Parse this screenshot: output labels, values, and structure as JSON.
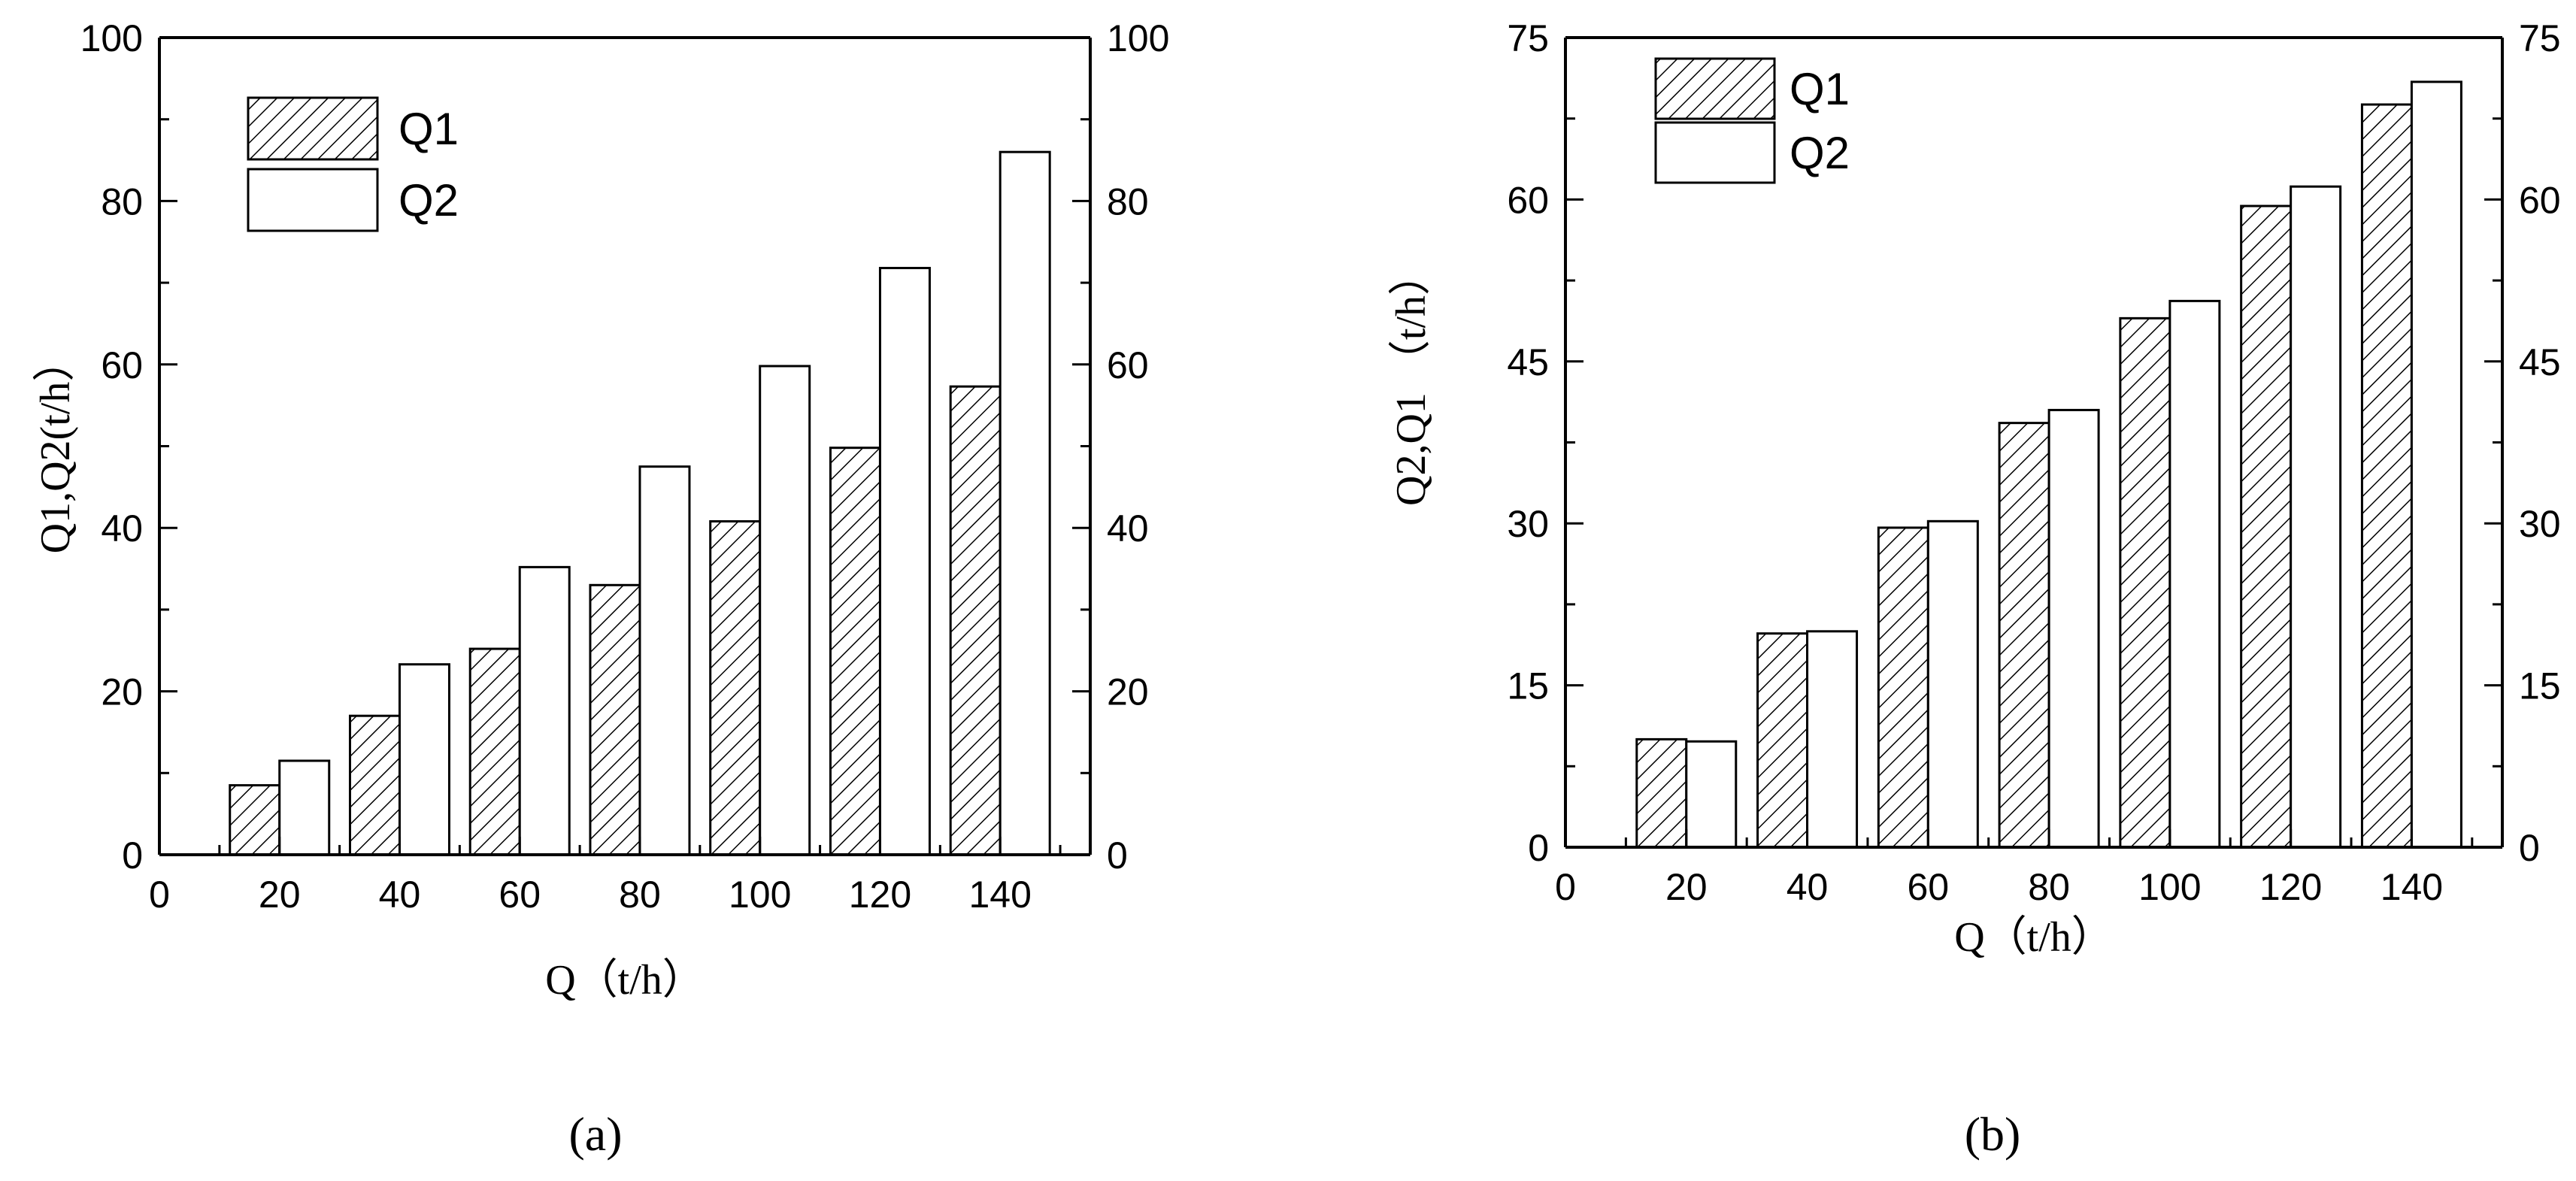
{
  "chart_data": [
    {
      "type": "bar",
      "panel_label": "(a)",
      "xlabel": "Q（t/h）",
      "ylabel": "Q1,Q2(t/h）",
      "xlim": [
        0,
        155
      ],
      "xticks": [
        "0",
        "20",
        "40",
        "60",
        "80",
        "100",
        "120",
        "140"
      ],
      "ylim": [
        0,
        100
      ],
      "yticks": [
        "0",
        "20",
        "40",
        "60",
        "80",
        "100"
      ],
      "right_axis_ticks": [
        "0",
        "20",
        "40",
        "60",
        "80",
        "100"
      ],
      "legend_position": "top-left",
      "x": [
        20,
        40,
        60,
        80,
        100,
        120,
        140
      ],
      "series": [
        {
          "name": "Q1",
          "pattern": "hatched",
          "values": [
            8.5,
            17,
            25.2,
            33,
            40.8,
            49.8,
            57.3
          ]
        },
        {
          "name": "Q2",
          "pattern": "empty",
          "values": [
            11.5,
            23.3,
            35.2,
            47.5,
            59.8,
            71.8,
            86
          ]
        }
      ]
    },
    {
      "type": "bar",
      "panel_label": "(b)",
      "xlabel": "Q（t/h）",
      "ylabel": "Q2,Q1 （t/h）",
      "xlim": [
        0,
        155
      ],
      "xticks": [
        "0",
        "20",
        "40",
        "60",
        "80",
        "100",
        "120",
        "140"
      ],
      "ylim": [
        0,
        75
      ],
      "yticks": [
        "0",
        "15",
        "30",
        "45",
        "60",
        "75"
      ],
      "right_axis_ticks": [
        "0",
        "15",
        "30",
        "45",
        "60",
        "75"
      ],
      "legend_position": "top-left",
      "x": [
        20,
        40,
        60,
        80,
        100,
        120,
        140
      ],
      "series": [
        {
          "name": "Q1",
          "pattern": "hatched",
          "values": [
            10,
            19.8,
            29.6,
            39.3,
            49,
            59.4,
            68.8
          ]
        },
        {
          "name": "Q2",
          "pattern": "empty",
          "values": [
            9.8,
            20,
            30.2,
            40.5,
            50.6,
            61.2,
            70.9
          ]
        }
      ]
    }
  ]
}
